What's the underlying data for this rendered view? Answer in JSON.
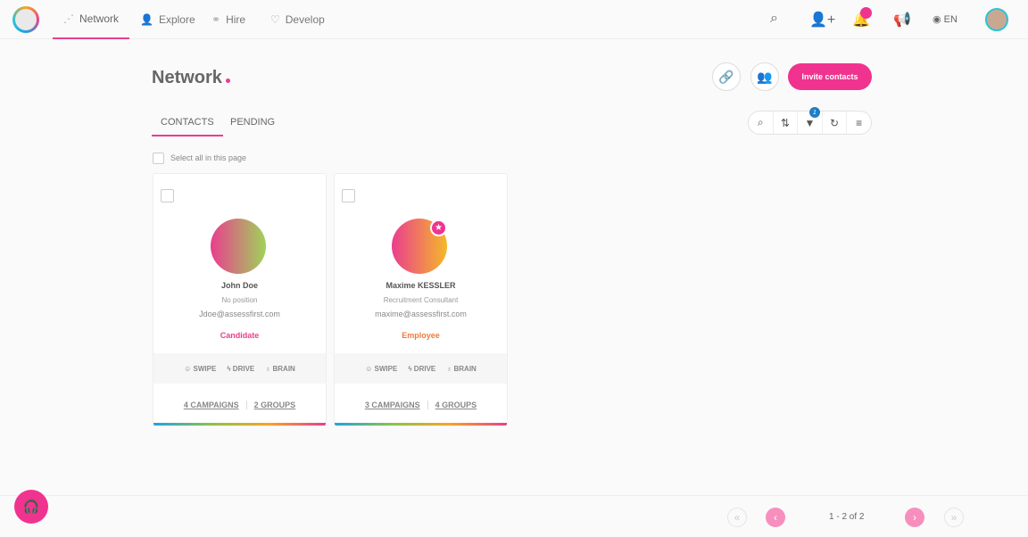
{
  "nav": {
    "items": [
      {
        "label": "Network",
        "icon": "network-icon"
      },
      {
        "label": "Explore",
        "icon": "users-search-icon"
      },
      {
        "label": "Hire",
        "icon": "handshake-icon"
      },
      {
        "label": "Develop",
        "icon": "diamond-icon"
      }
    ],
    "lang": "EN"
  },
  "page": {
    "title": "Network",
    "invite_label": "Invite contacts",
    "tabs": [
      "CONTACTS",
      "PENDING"
    ],
    "filter_count": "1",
    "select_all": "Select all in this page"
  },
  "cards": [
    {
      "name": "John Doe",
      "position": "No position",
      "email": "Jdoe@assessfirst.com",
      "type": "Candidate",
      "type_color": "#ea3e8e",
      "skills": [
        "SWIPE",
        "DRIVE",
        "BRAIN"
      ],
      "campaigns": "4 CAMPAIGNS",
      "groups": "2 GROUPS",
      "starred": false
    },
    {
      "name": "Maxime KESSLER",
      "position": "Recruitment Consultant",
      "email": "maxime@assessfirst.com",
      "type": "Employee",
      "type_color": "#f07a3a",
      "skills": [
        "SWIPE",
        "DRIVE",
        "BRAIN"
      ],
      "campaigns": "3 CAMPAIGNS",
      "groups": "4 GROUPS",
      "starred": true
    }
  ],
  "pagination": {
    "label": "1 - 2 of 2"
  },
  "colors": {
    "accent": "#f0338f"
  }
}
